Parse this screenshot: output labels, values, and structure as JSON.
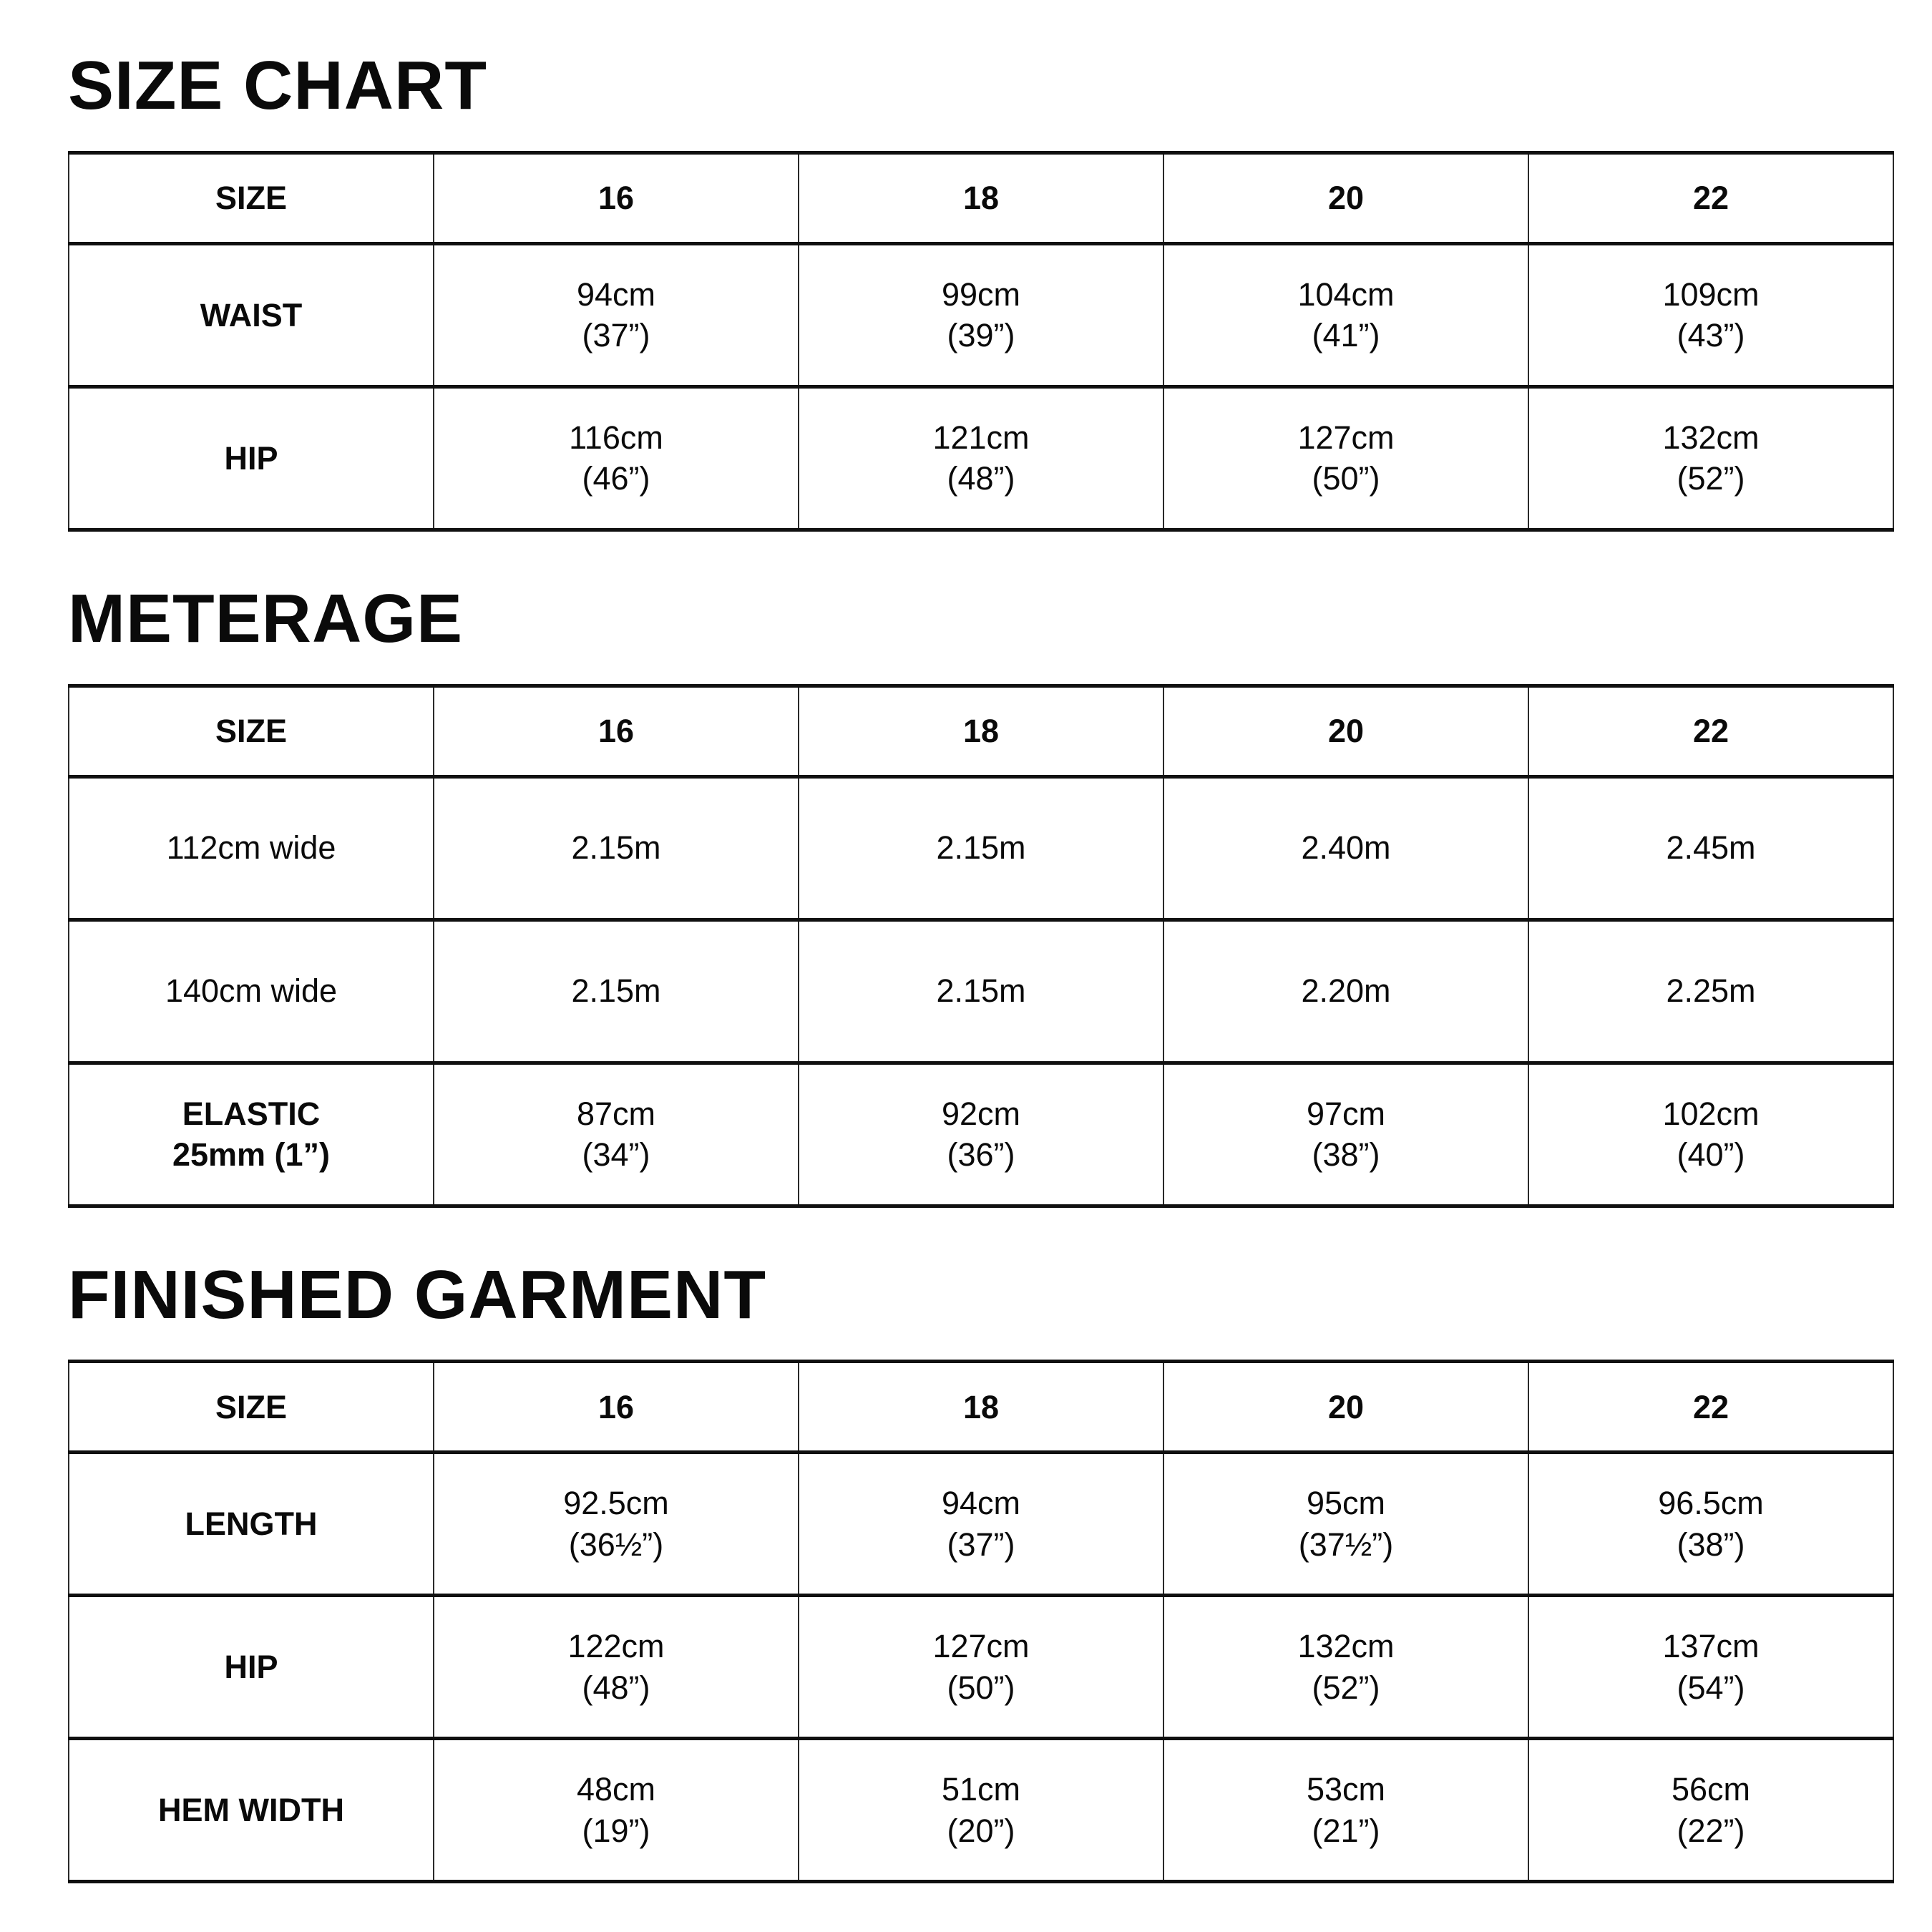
{
  "page": {
    "background": "#ffffff",
    "text_color": "#0a0a0a",
    "rule_color_horizontal": "#101010",
    "rule_color_vertical": "#2a2a2a"
  },
  "sections": [
    {
      "title": "SIZE CHART",
      "table": {
        "header": [
          "SIZE",
          "16",
          "18",
          "20",
          "22"
        ],
        "rows": [
          {
            "label": [
              "WAIST"
            ],
            "cells": [
              [
                "94cm",
                "(37”)"
              ],
              [
                "99cm",
                "(39”)"
              ],
              [
                "104cm",
                "(41”)"
              ],
              [
                "109cm",
                "(43”)"
              ]
            ]
          },
          {
            "label": [
              "HIP"
            ],
            "cells": [
              [
                "116cm",
                "(46”)"
              ],
              [
                "121cm",
                "(48”)"
              ],
              [
                "127cm",
                "(50”)"
              ],
              [
                "132cm",
                "(52”)"
              ]
            ]
          }
        ]
      }
    },
    {
      "title": "METERAGE",
      "table": {
        "header": [
          "SIZE",
          "16",
          "18",
          "20",
          "22"
        ],
        "rows": [
          {
            "label": [
              "112cm wide"
            ],
            "cells": [
              [
                "2.15m"
              ],
              [
                "2.15m"
              ],
              [
                "2.40m"
              ],
              [
                "2.45m"
              ]
            ]
          },
          {
            "label": [
              "140cm wide"
            ],
            "cells": [
              [
                "2.15m"
              ],
              [
                "2.15m"
              ],
              [
                "2.20m"
              ],
              [
                "2.25m"
              ]
            ]
          },
          {
            "label": [
              "ELASTIC",
              "25mm (1”)"
            ],
            "cells": [
              [
                "87cm",
                "(34”)"
              ],
              [
                "92cm",
                "(36”)"
              ],
              [
                "97cm",
                "(38”)"
              ],
              [
                "102cm",
                "(40”)"
              ]
            ]
          }
        ]
      }
    },
    {
      "title": "FINISHED GARMENT",
      "table": {
        "header": [
          "SIZE",
          "16",
          "18",
          "20",
          "22"
        ],
        "rows": [
          {
            "label": [
              "LENGTH"
            ],
            "cells": [
              [
                "92.5cm",
                "(36½”)"
              ],
              [
                "94cm",
                "(37”)"
              ],
              [
                "95cm",
                "(37½”)"
              ],
              [
                "96.5cm",
                "(38”)"
              ]
            ]
          },
          {
            "label": [
              "HIP"
            ],
            "cells": [
              [
                "122cm",
                "(48”)"
              ],
              [
                "127cm",
                "(50”)"
              ],
              [
                "132cm",
                "(52”)"
              ],
              [
                "137cm",
                "(54”)"
              ]
            ]
          },
          {
            "label": [
              "HEM WIDTH"
            ],
            "cells": [
              [
                "48cm",
                "(19”)"
              ],
              [
                "51cm",
                "(20”)"
              ],
              [
                "53cm",
                "(21”)"
              ],
              [
                "56cm",
                "(22”)"
              ]
            ]
          }
        ]
      }
    }
  ]
}
